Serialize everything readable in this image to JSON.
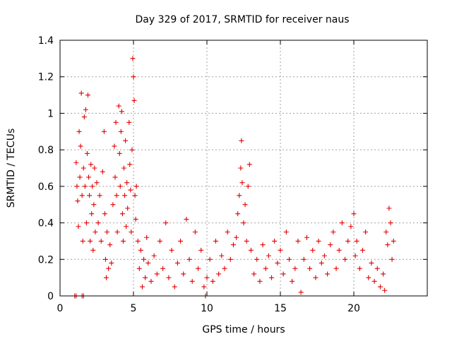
{
  "chart_data": {
    "type": "scatter",
    "title": "Day 329 of 2017, SRMTID for receiver naus",
    "xlabel": "GPS time / hours",
    "ylabel": "SRMTID / TECUs",
    "xlim": [
      0,
      25
    ],
    "ylim": [
      0,
      1.4
    ],
    "xticks": [
      0,
      5,
      10,
      15,
      20
    ],
    "yticks": [
      0,
      0.2,
      0.4,
      0.6,
      0.8,
      1,
      1.2,
      1.4
    ],
    "ytick_labels": [
      "0",
      "0.2",
      "0.4",
      "0.6",
      "0.8",
      "1",
      "1.2",
      "1.4"
    ],
    "grid": true,
    "marker": "plus",
    "color": "#e00000",
    "series": [
      {
        "name": "SRMTID",
        "points": [
          [
            1.0,
            0.0
          ],
          [
            1.1,
            0.0
          ],
          [
            1.5,
            0.0
          ],
          [
            1.6,
            0.0
          ],
          [
            1.1,
            0.73
          ],
          [
            1.15,
            0.6
          ],
          [
            1.2,
            0.52
          ],
          [
            1.25,
            0.38
          ],
          [
            1.3,
            0.9
          ],
          [
            1.35,
            0.65
          ],
          [
            1.4,
            0.82
          ],
          [
            1.45,
            1.11
          ],
          [
            1.5,
            0.55
          ],
          [
            1.55,
            0.3
          ],
          [
            1.6,
            0.7
          ],
          [
            1.65,
            0.98
          ],
          [
            1.7,
            0.6
          ],
          [
            1.75,
            1.02
          ],
          [
            1.8,
            0.4
          ],
          [
            1.85,
            0.78
          ],
          [
            1.9,
            1.1
          ],
          [
            1.95,
            0.65
          ],
          [
            2.0,
            0.55
          ],
          [
            2.05,
            0.3
          ],
          [
            2.1,
            0.72
          ],
          [
            2.15,
            0.45
          ],
          [
            2.2,
            0.6
          ],
          [
            2.25,
            0.25
          ],
          [
            2.3,
            0.5
          ],
          [
            2.35,
            0.7
          ],
          [
            2.4,
            0.35
          ],
          [
            2.5,
            0.62
          ],
          [
            2.6,
            0.4
          ],
          [
            2.7,
            0.55
          ],
          [
            2.8,
            0.3
          ],
          [
            2.9,
            0.68
          ],
          [
            3.0,
            0.9
          ],
          [
            3.05,
            0.45
          ],
          [
            3.1,
            0.2
          ],
          [
            3.15,
            0.1
          ],
          [
            3.2,
            0.35
          ],
          [
            3.3,
            0.15
          ],
          [
            3.4,
            0.28
          ],
          [
            3.5,
            0.18
          ],
          [
            3.6,
            0.5
          ],
          [
            3.7,
            0.82
          ],
          [
            3.75,
            0.65
          ],
          [
            3.8,
            0.95
          ],
          [
            3.85,
            0.55
          ],
          [
            3.9,
            0.35
          ],
          [
            4.0,
            1.04
          ],
          [
            4.05,
            0.78
          ],
          [
            4.1,
            0.6
          ],
          [
            4.15,
            0.9
          ],
          [
            4.2,
            1.01
          ],
          [
            4.25,
            0.45
          ],
          [
            4.3,
            0.3
          ],
          [
            4.35,
            0.7
          ],
          [
            4.4,
            0.55
          ],
          [
            4.45,
            0.85
          ],
          [
            4.5,
            0.38
          ],
          [
            4.55,
            0.62
          ],
          [
            4.6,
            0.48
          ],
          [
            4.7,
            0.95
          ],
          [
            4.75,
            0.72
          ],
          [
            4.8,
            0.58
          ],
          [
            4.85,
            0.35
          ],
          [
            4.9,
            0.8
          ],
          [
            4.95,
            1.3
          ],
          [
            5.0,
            1.2
          ],
          [
            5.05,
            1.07
          ],
          [
            5.1,
            0.55
          ],
          [
            5.15,
            0.42
          ],
          [
            5.2,
            0.6
          ],
          [
            5.3,
            0.3
          ],
          [
            5.4,
            0.15
          ],
          [
            5.5,
            0.25
          ],
          [
            5.6,
            0.05
          ],
          [
            5.7,
            0.2
          ],
          [
            5.8,
            0.1
          ],
          [
            5.9,
            0.32
          ],
          [
            6.0,
            0.18
          ],
          [
            6.2,
            0.08
          ],
          [
            6.4,
            0.22
          ],
          [
            6.6,
            0.12
          ],
          [
            6.8,
            0.3
          ],
          [
            7.0,
            0.15
          ],
          [
            7.2,
            0.4
          ],
          [
            7.4,
            0.1
          ],
          [
            7.6,
            0.25
          ],
          [
            7.8,
            0.05
          ],
          [
            8.0,
            0.18
          ],
          [
            8.2,
            0.3
          ],
          [
            8.4,
            0.12
          ],
          [
            8.6,
            0.42
          ],
          [
            8.8,
            0.2
          ],
          [
            9.0,
            0.08
          ],
          [
            9.2,
            0.35
          ],
          [
            9.4,
            0.15
          ],
          [
            9.6,
            0.25
          ],
          [
            9.8,
            0.05
          ],
          [
            9.9,
            0.0
          ],
          [
            10.0,
            0.1
          ],
          [
            10.2,
            0.2
          ],
          [
            10.4,
            0.08
          ],
          [
            10.6,
            0.3
          ],
          [
            10.8,
            0.12
          ],
          [
            11.0,
            0.22
          ],
          [
            11.2,
            0.15
          ],
          [
            11.4,
            0.35
          ],
          [
            11.6,
            0.2
          ],
          [
            11.8,
            0.28
          ],
          [
            12.0,
            0.32
          ],
          [
            12.1,
            0.45
          ],
          [
            12.2,
            0.55
          ],
          [
            12.3,
            0.7
          ],
          [
            12.35,
            0.85
          ],
          [
            12.4,
            0.62
          ],
          [
            12.5,
            0.4
          ],
          [
            12.6,
            0.5
          ],
          [
            12.7,
            0.3
          ],
          [
            12.8,
            0.6
          ],
          [
            12.9,
            0.72
          ],
          [
            13.0,
            0.25
          ],
          [
            13.2,
            0.12
          ],
          [
            13.4,
            0.2
          ],
          [
            13.6,
            0.08
          ],
          [
            13.8,
            0.28
          ],
          [
            14.0,
            0.15
          ],
          [
            14.2,
            0.22
          ],
          [
            14.4,
            0.1
          ],
          [
            14.6,
            0.3
          ],
          [
            14.8,
            0.18
          ],
          [
            15.0,
            0.25
          ],
          [
            15.2,
            0.12
          ],
          [
            15.4,
            0.35
          ],
          [
            15.6,
            0.2
          ],
          [
            15.8,
            0.08
          ],
          [
            16.0,
            0.15
          ],
          [
            16.2,
            0.3
          ],
          [
            16.4,
            0.02
          ],
          [
            16.6,
            0.2
          ],
          [
            16.8,
            0.32
          ],
          [
            17.0,
            0.15
          ],
          [
            17.2,
            0.25
          ],
          [
            17.4,
            0.1
          ],
          [
            17.6,
            0.3
          ],
          [
            17.8,
            0.18
          ],
          [
            18.0,
            0.22
          ],
          [
            18.2,
            0.12
          ],
          [
            18.4,
            0.28
          ],
          [
            18.6,
            0.35
          ],
          [
            18.8,
            0.15
          ],
          [
            19.0,
            0.25
          ],
          [
            19.2,
            0.4
          ],
          [
            19.4,
            0.2
          ],
          [
            19.6,
            0.3
          ],
          [
            19.8,
            0.38
          ],
          [
            20.0,
            0.45
          ],
          [
            20.1,
            0.22
          ],
          [
            20.2,
            0.3
          ],
          [
            20.4,
            0.15
          ],
          [
            20.6,
            0.25
          ],
          [
            20.8,
            0.35
          ],
          [
            21.0,
            0.1
          ],
          [
            21.2,
            0.18
          ],
          [
            21.4,
            0.08
          ],
          [
            21.6,
            0.15
          ],
          [
            21.8,
            0.05
          ],
          [
            22.0,
            0.12
          ],
          [
            22.1,
            0.03
          ],
          [
            22.2,
            0.35
          ],
          [
            22.3,
            0.28
          ],
          [
            22.4,
            0.48
          ],
          [
            22.5,
            0.4
          ],
          [
            22.6,
            0.2
          ],
          [
            22.7,
            0.3
          ]
        ]
      }
    ]
  }
}
